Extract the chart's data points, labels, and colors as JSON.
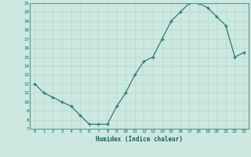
{
  "xlabel": "Humidex (Indice chaleur)",
  "x": [
    0,
    1,
    2,
    3,
    4,
    5,
    6,
    7,
    8,
    9,
    10,
    11,
    12,
    13,
    14,
    15,
    16,
    17,
    18,
    19,
    20,
    21,
    22,
    23
  ],
  "y": [
    12,
    11,
    10.5,
    10,
    9.5,
    8.5,
    7.5,
    7.5,
    7.5,
    9.5,
    11,
    13,
    14.5,
    15,
    17,
    19,
    20,
    21,
    21,
    20.5,
    19.5,
    18.5,
    15,
    15.5
  ],
  "ylim": [
    7,
    21
  ],
  "xlim": [
    -0.5,
    23.5
  ],
  "yticks": [
    7,
    8,
    9,
    10,
    11,
    12,
    13,
    14,
    15,
    16,
    17,
    18,
    19,
    20,
    21
  ],
  "xticks": [
    0,
    1,
    2,
    3,
    4,
    5,
    6,
    7,
    8,
    9,
    10,
    11,
    12,
    13,
    14,
    15,
    16,
    17,
    18,
    19,
    20,
    21,
    22,
    23
  ],
  "line_color": "#2d7d6e",
  "marker_color": "#2d7d6e",
  "bg_color": "#cce8e0",
  "grid_color": "#b8d8d0",
  "label_color": "#1a5f5a",
  "tick_color": "#1a5f5a",
  "spine_color": "#5a9a90"
}
